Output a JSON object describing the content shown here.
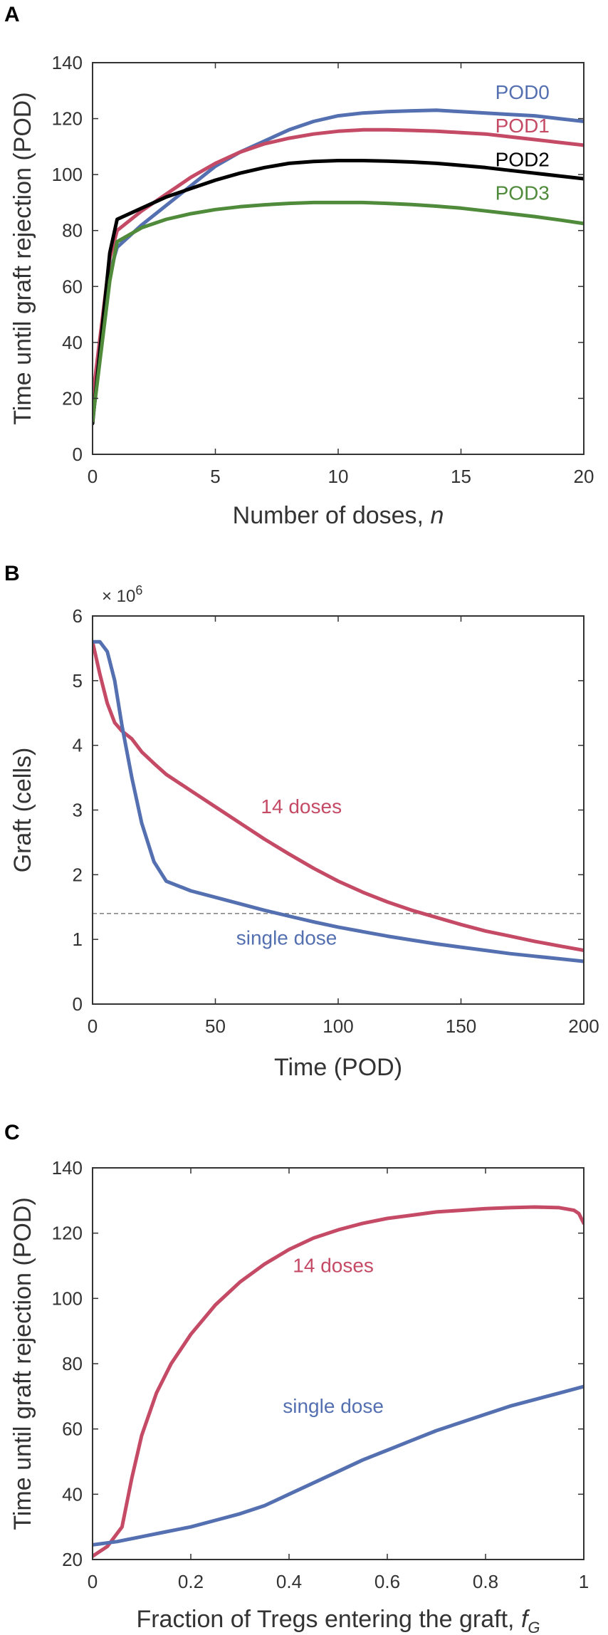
{
  "colors": {
    "blue": "#5470b0",
    "red": "#c44a65",
    "black": "#000000",
    "green": "#4f8b3a",
    "axis": "#333333",
    "grid_dash": "#888888"
  },
  "chart_data": [
    {
      "panel": "A",
      "type": "line",
      "xlabel": "Number of doses, ",
      "xlabel_var": "n",
      "ylabel": "Time until graft rejection (POD)",
      "xlim": [
        0,
        20
      ],
      "ylim": [
        0,
        140
      ],
      "xticks": [
        0,
        5,
        10,
        15,
        20
      ],
      "yticks": [
        0,
        20,
        40,
        60,
        80,
        100,
        120,
        140
      ],
      "grid": false,
      "series": [
        {
          "name": "POD0",
          "color": "#5470b0",
          "x": [
            0,
            0.7,
            1,
            2,
            3,
            4,
            5,
            6,
            7,
            8,
            9,
            10,
            11,
            12,
            13,
            14,
            15,
            16,
            17,
            18,
            19,
            20
          ],
          "y": [
            12,
            65,
            74,
            82,
            89,
            96,
            103,
            108,
            112,
            116,
            119,
            121,
            122,
            122.5,
            122.8,
            123,
            122.5,
            122,
            121.5,
            121,
            120,
            119
          ]
        },
        {
          "name": "POD1",
          "color": "#c44a65",
          "x": [
            0,
            0.7,
            1,
            2,
            3,
            4,
            5,
            6,
            7,
            8,
            9,
            10,
            11,
            12,
            13,
            14,
            15,
            16,
            17,
            18,
            19,
            20
          ],
          "y": [
            20,
            70,
            80,
            87,
            93,
            99,
            104,
            108,
            111,
            113,
            114.5,
            115.5,
            116,
            116,
            115.8,
            115.5,
            115,
            114.5,
            113.5,
            112.5,
            111.5,
            110.5
          ]
        },
        {
          "name": "POD2",
          "color": "#000000",
          "x": [
            0,
            0.7,
            1,
            2,
            3,
            4,
            5,
            6,
            7,
            8,
            9,
            10,
            11,
            12,
            13,
            14,
            15,
            16,
            17,
            18,
            19,
            20
          ],
          "y": [
            11,
            72,
            84,
            88,
            92,
            95,
            98,
            100.5,
            102.5,
            104,
            104.7,
            105,
            105,
            104.8,
            104.5,
            104,
            103.3,
            102.5,
            101.5,
            100.5,
            99.5,
            98.5
          ]
        },
        {
          "name": "POD3",
          "color": "#4f8b3a",
          "x": [
            0,
            0.7,
            1,
            2,
            3,
            4,
            5,
            6,
            7,
            8,
            9,
            10,
            11,
            12,
            13,
            14,
            15,
            16,
            17,
            18,
            19,
            20
          ],
          "y": [
            12,
            62,
            76,
            81,
            84,
            86,
            87.5,
            88.5,
            89.2,
            89.7,
            90,
            90,
            90,
            89.7,
            89.3,
            88.7,
            88,
            87,
            86,
            85,
            83.8,
            82.5
          ]
        }
      ],
      "labels": [
        {
          "text": "POD0",
          "x": 17.5,
          "y": 127,
          "color": "#5470b0"
        },
        {
          "text": "POD1",
          "x": 17.5,
          "y": 115,
          "color": "#c44a65"
        },
        {
          "text": "POD2",
          "x": 17.5,
          "y": 103,
          "color": "#000000"
        },
        {
          "text": "POD3",
          "x": 17.5,
          "y": 91,
          "color": "#4f8b3a"
        }
      ]
    },
    {
      "panel": "B",
      "type": "line",
      "xlabel": "Time (POD)",
      "ylabel": "Graft (cells)",
      "exponent_label": "× 10^6",
      "xlim": [
        0,
        200
      ],
      "ylim": [
        0,
        6
      ],
      "xticks": [
        0,
        50,
        100,
        150,
        200
      ],
      "yticks": [
        0,
        1,
        2,
        3,
        4,
        5,
        6
      ],
      "grid": false,
      "threshold": 1.4,
      "series": [
        {
          "name": "14 doses",
          "color": "#c44a65",
          "x": [
            0,
            3,
            6,
            9,
            12,
            16,
            20,
            25,
            30,
            40,
            50,
            60,
            70,
            80,
            90,
            100,
            110,
            120,
            130,
            140,
            150,
            160,
            170,
            180,
            190,
            200
          ],
          "y": [
            5.6,
            5.1,
            4.65,
            4.35,
            4.22,
            4.1,
            3.9,
            3.72,
            3.55,
            3.3,
            3.05,
            2.8,
            2.55,
            2.32,
            2.1,
            1.9,
            1.73,
            1.58,
            1.45,
            1.34,
            1.23,
            1.13,
            1.05,
            0.97,
            0.9,
            0.83
          ]
        },
        {
          "name": "single dose",
          "color": "#5470b0",
          "x": [
            0,
            3,
            6,
            9,
            12,
            16,
            20,
            25,
            30,
            40,
            50,
            60,
            70,
            80,
            90,
            100,
            110,
            120,
            130,
            140,
            150,
            160,
            170,
            180,
            190,
            200
          ],
          "y": [
            5.6,
            5.6,
            5.45,
            5.0,
            4.3,
            3.5,
            2.8,
            2.2,
            1.9,
            1.75,
            1.65,
            1.55,
            1.45,
            1.36,
            1.27,
            1.19,
            1.12,
            1.05,
            0.99,
            0.93,
            0.88,
            0.83,
            0.78,
            0.74,
            0.7,
            0.66
          ]
        }
      ],
      "labels": [
        {
          "text": "14 doses",
          "x": 85,
          "y": 2.95,
          "color": "#c44a65"
        },
        {
          "text": "single dose",
          "x": 79,
          "y": 0.92,
          "color": "#5470b0"
        }
      ]
    },
    {
      "panel": "C",
      "type": "line",
      "xlabel": "Fraction of Tregs entering the graft, ",
      "xlabel_var": "f",
      "xlabel_sub": "G",
      "ylabel": "Time until graft rejection (POD)",
      "xlim": [
        0,
        1
      ],
      "ylim": [
        20,
        140
      ],
      "xticks": [
        0,
        0.2,
        0.4,
        0.6,
        0.8,
        1
      ],
      "yticks": [
        20,
        40,
        60,
        80,
        100,
        120,
        140
      ],
      "grid": false,
      "series": [
        {
          "name": "14 doses",
          "color": "#c44a65",
          "x": [
            0,
            0.03,
            0.06,
            0.08,
            0.1,
            0.13,
            0.16,
            0.2,
            0.25,
            0.3,
            0.35,
            0.4,
            0.45,
            0.5,
            0.55,
            0.6,
            0.65,
            0.7,
            0.75,
            0.8,
            0.85,
            0.9,
            0.95,
            0.98,
            0.99,
            1.0
          ],
          "y": [
            21,
            24,
            30,
            45,
            58,
            71,
            80,
            89,
            98,
            105,
            110.5,
            115,
            118.5,
            121,
            123,
            124.5,
            125.5,
            126.5,
            127,
            127.5,
            127.8,
            128,
            127.8,
            127,
            126,
            123
          ]
        },
        {
          "name": "single dose",
          "color": "#5470b0",
          "x": [
            0,
            0.05,
            0.1,
            0.15,
            0.2,
            0.25,
            0.3,
            0.35,
            0.4,
            0.45,
            0.5,
            0.55,
            0.6,
            0.65,
            0.7,
            0.75,
            0.8,
            0.85,
            0.9,
            0.95,
            1.0
          ],
          "y": [
            24.5,
            25.5,
            27,
            28.5,
            30,
            32,
            34,
            36.5,
            40,
            43.5,
            47,
            50.5,
            53.5,
            56.5,
            59.5,
            62,
            64.5,
            67,
            69,
            71,
            73
          ]
        }
      ],
      "labels": [
        {
          "text": "14 doses",
          "x": 0.49,
          "y": 108,
          "color": "#c44a65"
        },
        {
          "text": "single dose",
          "x": 0.49,
          "y": 65,
          "color": "#5470b0"
        }
      ]
    }
  ]
}
